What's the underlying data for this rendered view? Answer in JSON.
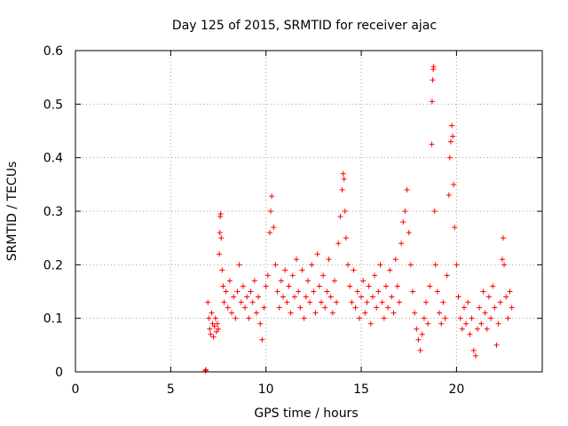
{
  "chart_data": {
    "type": "scatter",
    "title": "Day 125 of 2015, SRMTID for receiver ajac",
    "xlabel": "GPS time / hours",
    "ylabel": "SRMTID / TECUs",
    "xlim": [
      0,
      24.5
    ],
    "ylim": [
      0,
      0.6
    ],
    "grid": true,
    "xticks": [
      0,
      5,
      10,
      15,
      20
    ],
    "xtick_labels": [
      "0",
      "5",
      "10",
      "15",
      "20"
    ],
    "yticks": [
      0,
      0.1,
      0.2,
      0.3,
      0.4,
      0.5,
      0.6
    ],
    "ytick_labels": [
      "0",
      "0.1",
      "0.2",
      "0.3",
      "0.4",
      "0.5",
      "0.6"
    ],
    "marker": "+",
    "color": "#ff0000",
    "series": [
      {
        "name": "SRMTID",
        "points": [
          [
            6.82,
            0.002
          ],
          [
            6.85,
            0.004
          ],
          [
            6.95,
            0.13
          ],
          [
            7.0,
            0.1
          ],
          [
            7.05,
            0.08
          ],
          [
            7.1,
            0.07
          ],
          [
            7.15,
            0.11
          ],
          [
            7.2,
            0.09
          ],
          [
            7.25,
            0.065
          ],
          [
            7.3,
            0.085
          ],
          [
            7.35,
            0.1
          ],
          [
            7.4,
            0.075
          ],
          [
            7.45,
            0.09
          ],
          [
            7.5,
            0.08
          ],
          [
            7.55,
            0.22
          ],
          [
            7.58,
            0.26
          ],
          [
            7.6,
            0.29
          ],
          [
            7.62,
            0.295
          ],
          [
            7.65,
            0.25
          ],
          [
            7.7,
            0.19
          ],
          [
            7.75,
            0.16
          ],
          [
            7.8,
            0.13
          ],
          [
            7.9,
            0.15
          ],
          [
            8.0,
            0.12
          ],
          [
            8.1,
            0.17
          ],
          [
            8.2,
            0.11
          ],
          [
            8.3,
            0.14
          ],
          [
            8.4,
            0.1
          ],
          [
            8.5,
            0.15
          ],
          [
            8.6,
            0.2
          ],
          [
            8.7,
            0.13
          ],
          [
            8.8,
            0.16
          ],
          [
            8.9,
            0.12
          ],
          [
            9.0,
            0.14
          ],
          [
            9.1,
            0.1
          ],
          [
            9.2,
            0.15
          ],
          [
            9.3,
            0.13
          ],
          [
            9.4,
            0.17
          ],
          [
            9.5,
            0.11
          ],
          [
            9.6,
            0.14
          ],
          [
            9.7,
            0.09
          ],
          [
            9.8,
            0.06
          ],
          [
            9.9,
            0.12
          ],
          [
            10.0,
            0.16
          ],
          [
            10.1,
            0.18
          ],
          [
            10.2,
            0.26
          ],
          [
            10.25,
            0.3
          ],
          [
            10.3,
            0.328
          ],
          [
            10.4,
            0.27
          ],
          [
            10.5,
            0.2
          ],
          [
            10.6,
            0.15
          ],
          [
            10.7,
            0.12
          ],
          [
            10.8,
            0.17
          ],
          [
            10.9,
            0.14
          ],
          [
            11.0,
            0.19
          ],
          [
            11.1,
            0.13
          ],
          [
            11.2,
            0.16
          ],
          [
            11.3,
            0.11
          ],
          [
            11.4,
            0.18
          ],
          [
            11.5,
            0.14
          ],
          [
            11.6,
            0.21
          ],
          [
            11.7,
            0.15
          ],
          [
            11.8,
            0.12
          ],
          [
            11.9,
            0.19
          ],
          [
            12.0,
            0.1
          ],
          [
            12.1,
            0.14
          ],
          [
            12.2,
            0.17
          ],
          [
            12.3,
            0.13
          ],
          [
            12.4,
            0.2
          ],
          [
            12.5,
            0.15
          ],
          [
            12.6,
            0.11
          ],
          [
            12.7,
            0.22
          ],
          [
            12.8,
            0.16
          ],
          [
            12.9,
            0.13
          ],
          [
            13.0,
            0.18
          ],
          [
            13.1,
            0.12
          ],
          [
            13.2,
            0.15
          ],
          [
            13.3,
            0.21
          ],
          [
            13.4,
            0.14
          ],
          [
            13.5,
            0.11
          ],
          [
            13.6,
            0.17
          ],
          [
            13.7,
            0.13
          ],
          [
            13.8,
            0.24
          ],
          [
            13.9,
            0.29
          ],
          [
            14.0,
            0.34
          ],
          [
            14.05,
            0.37
          ],
          [
            14.1,
            0.36
          ],
          [
            14.15,
            0.3
          ],
          [
            14.2,
            0.25
          ],
          [
            14.3,
            0.2
          ],
          [
            14.4,
            0.16
          ],
          [
            14.5,
            0.13
          ],
          [
            14.6,
            0.19
          ],
          [
            14.7,
            0.12
          ],
          [
            14.8,
            0.15
          ],
          [
            14.9,
            0.1
          ],
          [
            15.0,
            0.14
          ],
          [
            15.1,
            0.17
          ],
          [
            15.2,
            0.11
          ],
          [
            15.3,
            0.13
          ],
          [
            15.4,
            0.16
          ],
          [
            15.5,
            0.09
          ],
          [
            15.6,
            0.14
          ],
          [
            15.7,
            0.18
          ],
          [
            15.8,
            0.12
          ],
          [
            15.9,
            0.15
          ],
          [
            16.0,
            0.2
          ],
          [
            16.1,
            0.13
          ],
          [
            16.2,
            0.1
          ],
          [
            16.3,
            0.16
          ],
          [
            16.4,
            0.12
          ],
          [
            16.5,
            0.19
          ],
          [
            16.6,
            0.14
          ],
          [
            16.7,
            0.11
          ],
          [
            16.8,
            0.21
          ],
          [
            16.9,
            0.16
          ],
          [
            17.0,
            0.13
          ],
          [
            17.1,
            0.24
          ],
          [
            17.2,
            0.28
          ],
          [
            17.3,
            0.3
          ],
          [
            17.4,
            0.34
          ],
          [
            17.5,
            0.26
          ],
          [
            17.6,
            0.2
          ],
          [
            17.7,
            0.15
          ],
          [
            17.8,
            0.11
          ],
          [
            17.9,
            0.08
          ],
          [
            18.0,
            0.06
          ],
          [
            18.1,
            0.04
          ],
          [
            18.2,
            0.07
          ],
          [
            18.3,
            0.1
          ],
          [
            18.4,
            0.13
          ],
          [
            18.5,
            0.09
          ],
          [
            18.6,
            0.16
          ],
          [
            18.7,
            0.425
          ],
          [
            18.72,
            0.505
          ],
          [
            18.75,
            0.545
          ],
          [
            18.78,
            0.565
          ],
          [
            18.8,
            0.57
          ],
          [
            18.85,
            0.3
          ],
          [
            18.9,
            0.2
          ],
          [
            19.0,
            0.15
          ],
          [
            19.1,
            0.11
          ],
          [
            19.2,
            0.09
          ],
          [
            19.3,
            0.13
          ],
          [
            19.4,
            0.1
          ],
          [
            19.5,
            0.18
          ],
          [
            19.6,
            0.33
          ],
          [
            19.65,
            0.4
          ],
          [
            19.7,
            0.43
          ],
          [
            19.75,
            0.46
          ],
          [
            19.8,
            0.44
          ],
          [
            19.85,
            0.35
          ],
          [
            19.9,
            0.27
          ],
          [
            20.0,
            0.2
          ],
          [
            20.1,
            0.14
          ],
          [
            20.2,
            0.1
          ],
          [
            20.3,
            0.08
          ],
          [
            20.4,
            0.12
          ],
          [
            20.5,
            0.09
          ],
          [
            20.6,
            0.13
          ],
          [
            20.7,
            0.07
          ],
          [
            20.8,
            0.1
          ],
          [
            20.9,
            0.04
          ],
          [
            21.0,
            0.03
          ],
          [
            21.1,
            0.08
          ],
          [
            21.2,
            0.12
          ],
          [
            21.3,
            0.09
          ],
          [
            21.4,
            0.15
          ],
          [
            21.5,
            0.11
          ],
          [
            21.6,
            0.08
          ],
          [
            21.7,
            0.14
          ],
          [
            21.8,
            0.1
          ],
          [
            21.9,
            0.16
          ],
          [
            22.0,
            0.12
          ],
          [
            22.1,
            0.05
          ],
          [
            22.2,
            0.09
          ],
          [
            22.3,
            0.13
          ],
          [
            22.4,
            0.21
          ],
          [
            22.45,
            0.25
          ],
          [
            22.5,
            0.2
          ],
          [
            22.6,
            0.14
          ],
          [
            22.7,
            0.1
          ],
          [
            22.8,
            0.15
          ],
          [
            22.9,
            0.12
          ]
        ]
      }
    ]
  }
}
